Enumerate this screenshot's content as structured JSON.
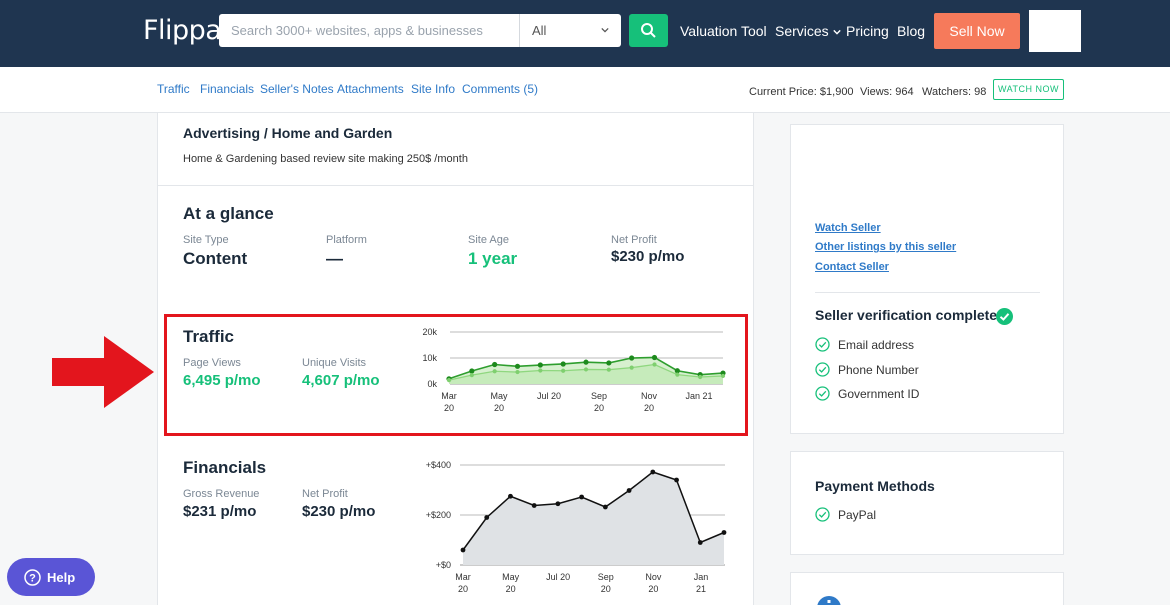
{
  "brand": {
    "logo": "Flippa"
  },
  "search": {
    "placeholder": "Search 3000+ websites, apps & businesses",
    "category": "All"
  },
  "nav": {
    "valuation": "Valuation Tool",
    "services": "Services",
    "pricing": "Pricing",
    "blog": "Blog",
    "sell": "Sell Now"
  },
  "subnav": {
    "links": [
      "Traffic",
      "Financials",
      "Seller's Notes",
      "Attachments",
      "Site Info",
      "Comments (5)"
    ],
    "current_price": "Current Price: $1,900",
    "views": "Views: 964",
    "watchers": "Watchers: 98",
    "watch_now": "WATCH NOW"
  },
  "listing": {
    "category": "Advertising / Home and Garden",
    "description": "Home & Gardening based review site making 250$ /month"
  },
  "glance": {
    "title": "At a glance",
    "site_type_label": "Site Type",
    "site_type": "Content",
    "platform_label": "Platform",
    "platform": "—",
    "site_age_label": "Site Age",
    "site_age": "1 year",
    "net_profit_label": "Net Profit",
    "net_profit": "$230 p/mo"
  },
  "traffic": {
    "title": "Traffic",
    "page_views_label": "Page Views",
    "page_views": "6,495 p/mo",
    "unique_label": "Unique Visits",
    "unique": "4,607 p/mo"
  },
  "financials": {
    "title": "Financials",
    "gross_label": "Gross Revenue",
    "gross": "$231 p/mo",
    "net_label": "Net Profit",
    "net": "$230 p/mo"
  },
  "sidebar": {
    "watch_seller": "Watch Seller",
    "other_listings": "Other listings by this seller",
    "contact_seller": "Contact Seller",
    "verification_title": "Seller verification complete",
    "verifications": [
      "Email address",
      "Phone Number",
      "Government ID"
    ],
    "payment_title": "Payment Methods",
    "payment_methods": [
      "PayPal"
    ]
  },
  "help": {
    "label": "Help"
  },
  "colors": {
    "nav_bg": "#1f3550",
    "accent_green": "#16c07a",
    "sell_orange": "#f67a5b",
    "link_blue": "#2f7ac8",
    "highlight_red": "#e3151d",
    "help_purple": "#5a55d6"
  },
  "chart_data": [
    {
      "type": "area",
      "y_ticks": [
        "20k",
        "10k",
        "0k"
      ],
      "ylim": [
        0,
        20000
      ],
      "x_tick_labels": [
        [
          "Mar",
          "20"
        ],
        [
          "May",
          "20"
        ],
        [
          "Jul 20",
          ""
        ],
        [
          "Sep",
          "20"
        ],
        [
          "Nov",
          "20"
        ],
        [
          "Jan 21",
          ""
        ]
      ],
      "series": [
        {
          "values": [
            2000,
            5000,
            7500,
            6800,
            7300,
            7700,
            8400,
            8100,
            10000,
            10200,
            5100,
            3600,
            4200
          ]
        },
        {
          "values": [
            1500,
            3400,
            4900,
            4600,
            5200,
            5100,
            5600,
            5500,
            6300,
            7500,
            3600,
            2700,
            3100
          ]
        }
      ]
    },
    {
      "type": "area",
      "y_ticks": [
        "+$400",
        "+$200",
        "+$0"
      ],
      "ylim": [
        0,
        400
      ],
      "x_tick_labels": [
        [
          "Mar",
          "20"
        ],
        [
          "May",
          "20"
        ],
        [
          "Jul 20",
          ""
        ],
        [
          "Sep",
          "20"
        ],
        [
          "Nov",
          "20"
        ],
        [
          "Jan",
          "21"
        ]
      ],
      "series": [
        {
          "values": [
            60,
            190,
            275,
            238,
            245,
            272,
            232,
            298,
            372,
            340,
            90,
            130
          ]
        }
      ]
    }
  ]
}
